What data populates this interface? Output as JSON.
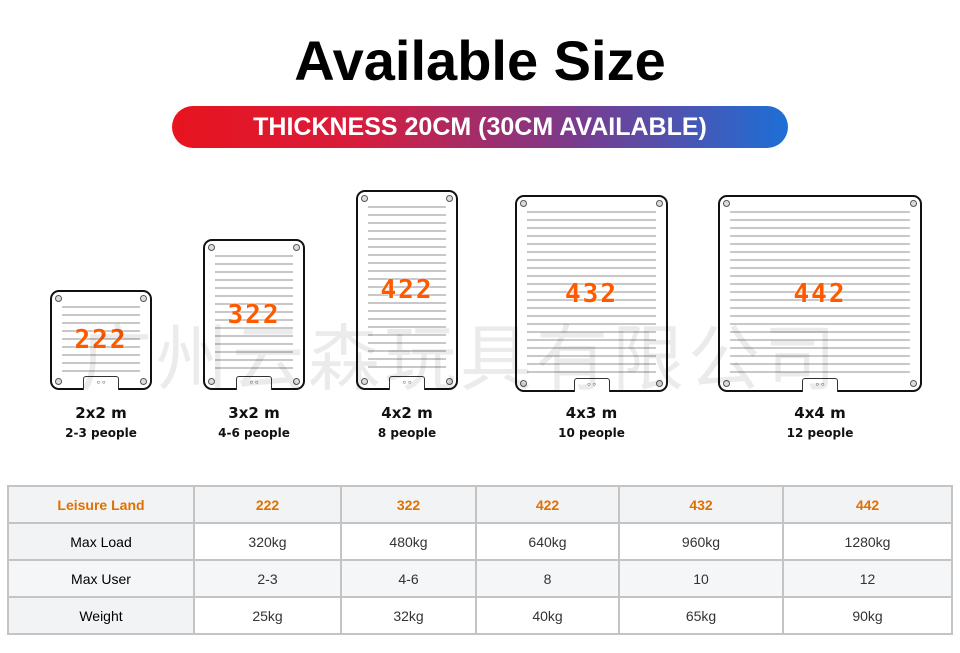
{
  "title": "Available Size",
  "banner": "THICKNESS 20CM (30CM AVAILABLE)",
  "watermark": "广州云森玩具有限公司",
  "sizes": [
    {
      "code": "222",
      "size": "2x2 m",
      "people": "2-3 people"
    },
    {
      "code": "322",
      "size": "3x2 m",
      "people": "4-6 people"
    },
    {
      "code": "422",
      "size": "4x2 m",
      "people": "8 people"
    },
    {
      "code": "432",
      "size": "4x3 m",
      "people": "10 people"
    },
    {
      "code": "442",
      "size": "4x4 m",
      "people": "12 people"
    }
  ],
  "table": {
    "header": [
      "Leisure Land",
      "222",
      "322",
      "422",
      "432",
      "442"
    ],
    "rows": [
      [
        "Max Load",
        "320kg",
        "480kg",
        "640kg",
        "960kg",
        "1280kg"
      ],
      [
        "Max User",
        "2-3",
        "4-6",
        "8",
        "10",
        "12"
      ],
      [
        "Weight",
        "25kg",
        "32kg",
        "40kg",
        "65kg",
        "90kg"
      ]
    ]
  },
  "colors": {
    "accent": "#ff5a00",
    "banner_start": "#e8141e",
    "banner_end": "#1d6fd6"
  }
}
